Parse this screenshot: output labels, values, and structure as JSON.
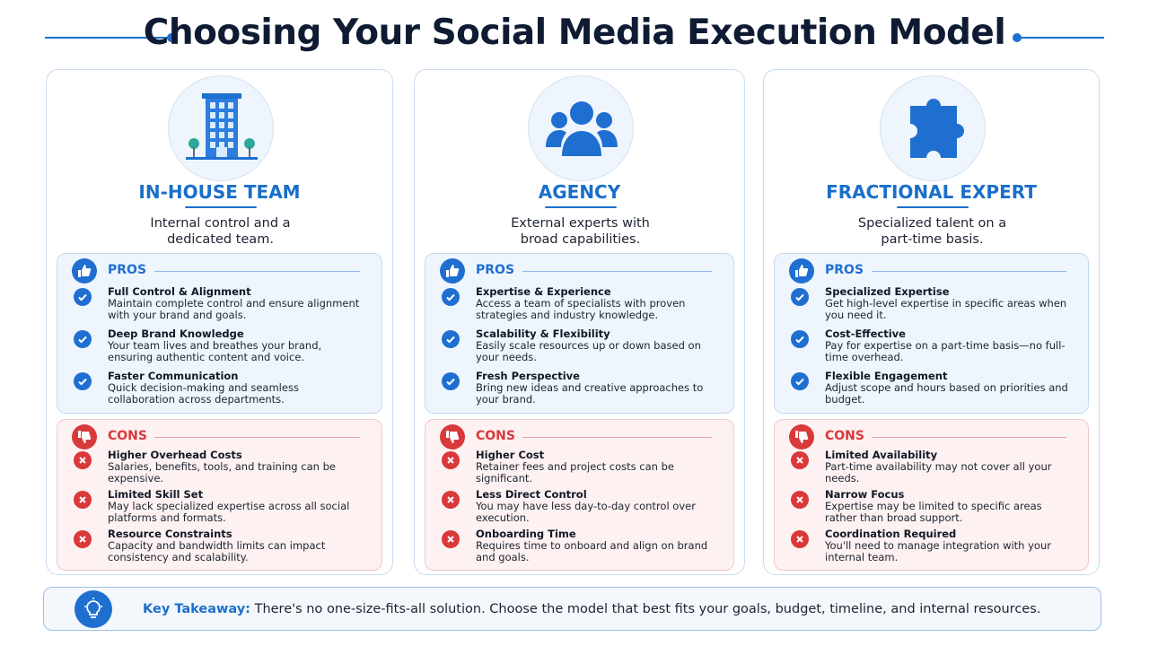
{
  "header": {
    "title": "Choosing Your Social Media Execution Model"
  },
  "columns": [
    {
      "heading": "IN-HOUSE TEAM",
      "subtitle": "Internal control and a dedicated team.",
      "pros_label": "PROS",
      "pros": [
        {
          "title": "Full Control & Alignment",
          "text": "Maintain complete control and ensure alignment with your brand and goals."
        },
        {
          "title": "Deep Brand Knowledge",
          "text": "Your team lives and breathes your brand, ensuring authentic content and voice."
        },
        {
          "title": "Faster Communication",
          "text": "Quick decision-making and seamless collaboration across departments."
        }
      ],
      "cons_label": "CONS",
      "cons": [
        {
          "title": "Higher Overhead Costs",
          "text": "Salaries, benefits, tools, and training can be expensive."
        },
        {
          "title": "Limited Skill Set",
          "text": "May lack specialized expertise across all social platforms and formats."
        },
        {
          "title": "Resource Constraints",
          "text": "Capacity and bandwidth limits can impact consistency and scalability."
        }
      ]
    },
    {
      "heading": "AGENCY",
      "subtitle": "External experts with broad capabilities.",
      "pros_label": "PROS",
      "pros": [
        {
          "title": "Expertise & Experience",
          "text": "Access a team of specialists with proven strategies and industry knowledge."
        },
        {
          "title": "Scalability & Flexibility",
          "text": "Easily scale resources up or down based on your needs."
        },
        {
          "title": "Fresh Perspective",
          "text": "Bring new ideas and creative approaches to your brand."
        }
      ],
      "cons_label": "CONS",
      "cons": [
        {
          "title": "Higher Cost",
          "text": "Retainer fees and project costs can be significant."
        },
        {
          "title": "Less Direct Control",
          "text": "You may have less day-to-day control over execution."
        },
        {
          "title": "Onboarding Time",
          "text": "Requires time to onboard and align on brand and goals."
        }
      ]
    },
    {
      "heading": "FRACTIONAL EXPERT",
      "subtitle": "Specialized talent on a part-time basis.",
      "pros_label": "PROS",
      "pros": [
        {
          "title": "Specialized Expertise",
          "text": "Get high-level expertise in specific areas when you need it."
        },
        {
          "title": "Cost-Effective",
          "text": "Pay for expertise on a part-time basis—no full-time overhead."
        },
        {
          "title": "Flexible Engagement",
          "text": "Adjust scope and hours based on priorities and budget."
        }
      ],
      "cons_label": "CONS",
      "cons": [
        {
          "title": "Limited Availability",
          "text": "Part-time availability may not cover all your needs."
        },
        {
          "title": "Narrow Focus",
          "text": "Expertise may be limited to specific areas rather than broad support."
        },
        {
          "title": "Coordination Required",
          "text": "You'll need to manage integration with your internal team."
        }
      ]
    }
  ],
  "takeaway": {
    "label": "Key Takeaway:",
    "text": "There's no one-size-fits-all solution. Choose the model that best fits your goals, budget, timeline, and internal resources."
  }
}
